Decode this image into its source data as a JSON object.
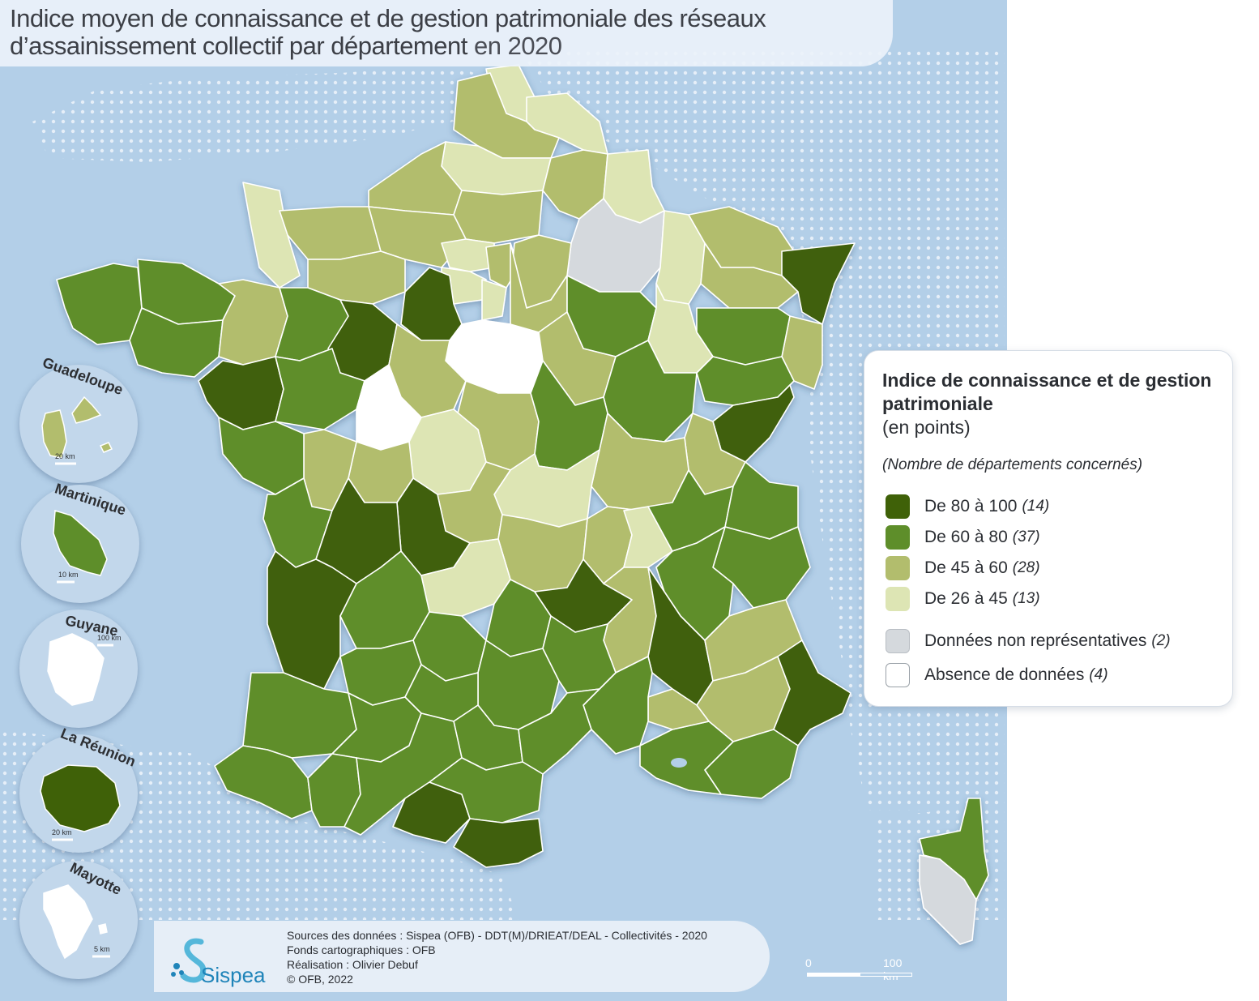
{
  "title": {
    "main": "Indice moyen de connaissance et de gestion patrimoniale des réseaux d’assainissement collectif par département",
    "suffix": "en 2020"
  },
  "legend": {
    "title": "Indice de connaissance et de gestion patrimoniale",
    "unit": "(en points)",
    "note": "(Nombre de départements concernés)",
    "classes": [
      {
        "label": "De 80 à 100",
        "count": "(14)",
        "color": "#3f6108"
      },
      {
        "label": "De 60 à 80",
        "count": "(37)",
        "color": "#5e8e2a"
      },
      {
        "label": "De 45 à 60",
        "count": "(28)",
        "color": "#b2bd6d"
      },
      {
        "label": "De 26 à 45",
        "count": "(13)",
        "color": "#dde5b4"
      }
    ],
    "extra": [
      {
        "label": "Données non représentatives",
        "count": "(2)",
        "color": "#d5d9dd"
      },
      {
        "label": "Absence de données",
        "count": "(4)",
        "color": "#ffffff"
      }
    ]
  },
  "outremer": [
    {
      "name": "Guadeloupe",
      "scale": "20 km",
      "class_color": "#b2bd6d"
    },
    {
      "name": "Martinique",
      "scale": "10 km",
      "class_color": "#5e8e2a"
    },
    {
      "name": "Guyane",
      "scale": "100 km",
      "class_color": "#ffffff"
    },
    {
      "name": "La Réunion",
      "scale": "20 km",
      "class_color": "#3f6108"
    },
    {
      "name": "Mayotte",
      "scale": "5 km",
      "class_color": "#ffffff"
    }
  ],
  "sources": {
    "line1": "Sources des données : Sispea (OFB) - DDT(M)/DRIEAT/DEAL - Collectivités - 2020",
    "line2": "Fonds cartographiques : OFB",
    "line3": "Réalisation : Olivier Debuf",
    "line4": "© OFB, 2022",
    "logo_text": "Sispea"
  },
  "scalebar": {
    "zero": "0",
    "max": "100 km"
  },
  "colors": {
    "sea": "#b3cfe8",
    "class_80_100": "#3f6108",
    "class_60_80": "#5e8e2a",
    "class_45_60": "#b2bd6d",
    "class_26_45": "#dde5b4",
    "non_representative": "#d5d9dd",
    "no_data": "#ffffff"
  }
}
